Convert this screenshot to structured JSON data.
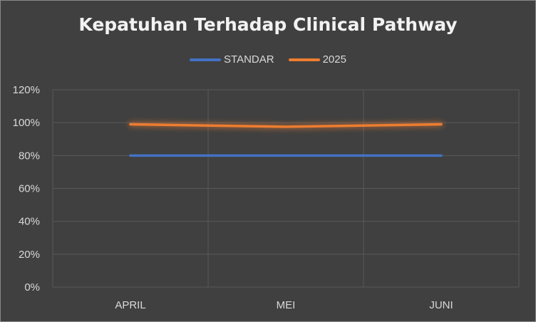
{
  "chart_data": {
    "type": "line",
    "title": "Kepatuhan Terhadap Clinical Pathway",
    "categories": [
      "APRIL",
      "MEI",
      "JUNI"
    ],
    "series": [
      {
        "name": "STANDAR",
        "values": [
          80,
          80,
          80
        ],
        "color": "#4472c4"
      },
      {
        "name": "2025",
        "values": [
          99,
          97.5,
          99
        ],
        "color": "#ed7d31"
      }
    ],
    "ylim": [
      0,
      120
    ],
    "yticks": [
      "0%",
      "20%",
      "40%",
      "60%",
      "80%",
      "100%",
      "120%"
    ],
    "grid": true,
    "legend_position": "top"
  }
}
